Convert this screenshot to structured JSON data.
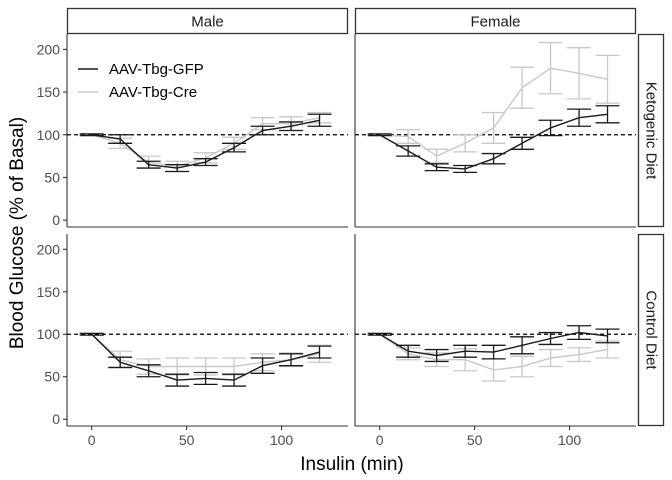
{
  "chart_data": {
    "type": "line",
    "xlabel": "Insulin (min)",
    "ylabel": "Blood Glucose (% of Basal)",
    "xlim": [
      -13,
      135
    ],
    "ylim": [
      -8,
      218
    ],
    "x_ticks": [
      0,
      50,
      100
    ],
    "y_ticks": [
      0,
      50,
      100,
      150,
      200
    ],
    "reference_line": {
      "y": 100,
      "style": "dashed"
    },
    "columns": [
      "Male",
      "Female"
    ],
    "rows": [
      "Ketogenic Diet",
      "Control Diet"
    ],
    "legend": {
      "position": "top-left",
      "entries": [
        "AAV-Tbg-GFP",
        "AAV-Tbg-Cre"
      ]
    },
    "colors": {
      "AAV-Tbg-GFP": "#1a1a1a",
      "AAV-Tbg-Cre": "#c8c8c8"
    },
    "x": [
      0,
      15,
      30,
      45,
      60,
      75,
      90,
      105,
      120
    ],
    "panels": [
      {
        "column": "Male",
        "row": "Ketogenic Diet",
        "series": [
          {
            "name": "AAV-Tbg-GFP",
            "values": [
              100,
              95,
              65,
              61,
              68,
              85,
              105,
              110,
              117
            ],
            "errors": [
              1,
              5,
              4,
              4,
              4,
              5,
              5,
              5,
              7
            ]
          },
          {
            "name": "AAV-Tbg-Cre",
            "values": [
              100,
              90,
              68,
              63,
              73,
              90,
              113,
              113,
              120
            ],
            "errors": [
              1,
              6,
              7,
              6,
              6,
              7,
              7,
              8,
              6
            ]
          }
        ]
      },
      {
        "column": "Female",
        "row": "Ketogenic Diet",
        "series": [
          {
            "name": "AAV-Tbg-GFP",
            "values": [
              100,
              81,
              62,
              60,
              72,
              90,
              108,
              120,
              124
            ],
            "errors": [
              1,
              6,
              4,
              4,
              6,
              7,
              9,
              10,
              10
            ]
          },
          {
            "name": "AAV-Tbg-Cre",
            "values": [
              100,
              98,
              75,
              90,
              108,
              155,
              178,
              172,
              165
            ],
            "errors": [
              1,
              8,
              8,
              10,
              18,
              24,
              30,
              30,
              28
            ]
          }
        ]
      },
      {
        "column": "Male",
        "row": "Control Diet",
        "series": [
          {
            "name": "AAV-Tbg-GFP",
            "values": [
              100,
              67,
              57,
              46,
              48,
              46,
              63,
              70,
              79
            ],
            "errors": [
              1,
              6,
              7,
              7,
              7,
              7,
              9,
              7,
              7
            ]
          },
          {
            "name": "AAV-Tbg-Cre",
            "values": [
              100,
              70,
              62,
              62,
              62,
              62,
              67,
              70,
              77
            ],
            "errors": [
              1,
              10,
              9,
              10,
              10,
              10,
              10,
              8,
              10
            ]
          }
        ]
      },
      {
        "column": "Female",
        "row": "Control Diet",
        "series": [
          {
            "name": "AAV-Tbg-GFP",
            "values": [
              100,
              80,
              75,
              80,
              79,
              87,
              95,
              102,
              98
            ],
            "errors": [
              1,
              7,
              7,
              7,
              8,
              10,
              7,
              8,
              8
            ]
          },
          {
            "name": "AAV-Tbg-Cre",
            "values": [
              100,
              77,
              70,
              70,
              58,
              62,
              72,
              76,
              82
            ],
            "errors": [
              1,
              7,
              8,
              13,
              13,
              12,
              10,
              8,
              10
            ]
          }
        ]
      }
    ]
  }
}
